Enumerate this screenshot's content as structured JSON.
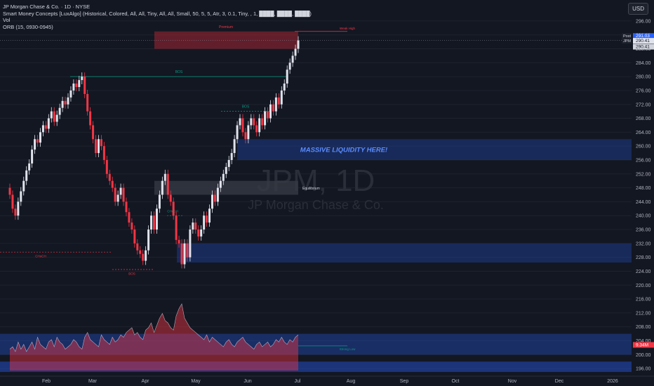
{
  "header": {
    "title_line": "JP Morgan Chase & Co. · 1D · NYSE",
    "indicator_1": "Smart Money Concepts [LuxAlgo] (Historical, Colored, All, All, Tiny, All, All, Small, 50, 5, 5, Atr, 3, 0.1, Tiny, , 1, ████, ████, ████)",
    "indicator_2": "Vol",
    "indicator_3": "ORB (15, 0930-0945)",
    "currency": "USD"
  },
  "watermark": {
    "symbol": "JPM, 1D",
    "name": "JP Morgan Chase & Co."
  },
  "colors": {
    "background": "#131722",
    "up": "#e0e3eb",
    "down": "#f23645",
    "zone_blue": "#2962ff",
    "zone_red": "#b22833",
    "grid": "#1e222d"
  },
  "price_axis": {
    "ticks": [
      196,
      200,
      204,
      208,
      212,
      216,
      220,
      224,
      228,
      232,
      236,
      240,
      244,
      248,
      252,
      256,
      260,
      264,
      268,
      272,
      276,
      280,
      284,
      288,
      292,
      296
    ],
    "labels": {
      "post_label": "Post",
      "post_value": "291.03",
      "jpm_label": "JPM",
      "jpm_value": "290.41",
      "last_value": "290.41",
      "vol_value": "9.34M"
    }
  },
  "time_axis": {
    "labels": [
      "Feb",
      "Mar",
      "Apr",
      "May",
      "Jun",
      "Jul",
      "Aug",
      "Sep",
      "Oct",
      "Nov",
      "Dec",
      "2026"
    ]
  },
  "annotations": {
    "premium": "Premium",
    "bos_top": "BOS",
    "bos_mid": "BOS",
    "choch": "CHoCH",
    "choch_low": "CHoCH",
    "bos_low": "BOS",
    "equilibrium": "Equilibrium",
    "liquidity": "MASSIVE LIQUIDITY HERE!",
    "weak_high": "Weak High",
    "strong_low": "Strong Low"
  },
  "chart_data": {
    "type": "candlestick",
    "symbol": "JPM",
    "timeframe": "1D",
    "ylim": [
      194,
      298
    ],
    "last_price": 290.41,
    "close_series": [
      246,
      242,
      240,
      244,
      247,
      250,
      253,
      255,
      259,
      262,
      261,
      264,
      266,
      265,
      268,
      270,
      267,
      269,
      271,
      273,
      272,
      274,
      276,
      278,
      277,
      279,
      280,
      275,
      270,
      266,
      262,
      258,
      262,
      260,
      256,
      252,
      250,
      248,
      244,
      246,
      248,
      244,
      241,
      238,
      236,
      232,
      230,
      229,
      227,
      230,
      236,
      240,
      236,
      242,
      246,
      250,
      252,
      246,
      244,
      240,
      233,
      232,
      226,
      232,
      228,
      236,
      238,
      236,
      234,
      236,
      240,
      238,
      242,
      246,
      244,
      248,
      250,
      252,
      254,
      256,
      258,
      262,
      266,
      268,
      264,
      262,
      266,
      268,
      266,
      264,
      268,
      266,
      270,
      268,
      272,
      270,
      274,
      272,
      276,
      278,
      282,
      284,
      286,
      288,
      290.41
    ],
    "volume_series": [
      9,
      10,
      8,
      12,
      9,
      11,
      8,
      10,
      12,
      9,
      14,
      11,
      10,
      9,
      12,
      13,
      10,
      14,
      12,
      11,
      9,
      10,
      11,
      13,
      12,
      10,
      9,
      14,
      16,
      13,
      12,
      11,
      10,
      15,
      13,
      12,
      11,
      14,
      12,
      13,
      15,
      14,
      16,
      17,
      18,
      15,
      16,
      14,
      13,
      17,
      18,
      20,
      16,
      19,
      22,
      24,
      21,
      20,
      18,
      17,
      23,
      26,
      28,
      22,
      20,
      18,
      17,
      16,
      15,
      14,
      13,
      15,
      12,
      14,
      13,
      12,
      11,
      10,
      12,
      13,
      11,
      10,
      12,
      13,
      14,
      12,
      11,
      10,
      9,
      11,
      12,
      10,
      11,
      12,
      10,
      11,
      13,
      12,
      14,
      12,
      11,
      13,
      12,
      14,
      15
    ]
  }
}
